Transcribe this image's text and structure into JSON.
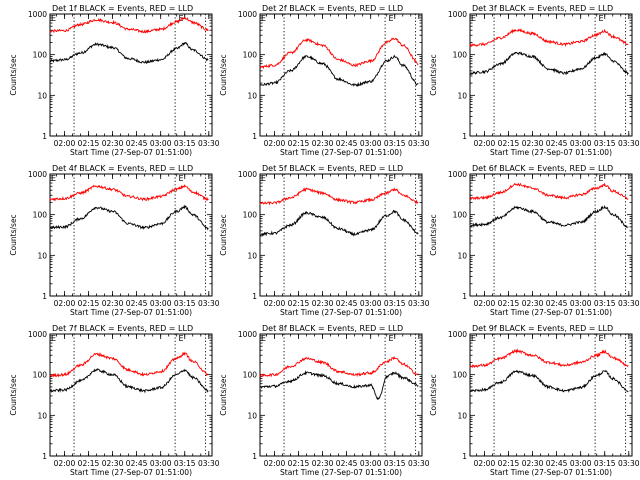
{
  "chart_data": [
    {
      "type": "line",
      "title": "Det 1f BLACK = Events, RED = LLD",
      "xlabel": "Start Time (27-Sep-07 01:51:00)",
      "ylabel": "Counts/sec",
      "yscale": "log",
      "ylim": [
        1,
        1000
      ],
      "x_ticks": [
        "02:00",
        "02:15",
        "02:30",
        "02:45",
        "03:00",
        "03:15",
        "03:30"
      ],
      "y_ticks": [
        "1",
        "10",
        "100",
        "1000"
      ],
      "xlim": [
        "01:51",
        "03:32"
      ],
      "vlines": [
        "02:06",
        "03:09",
        "03:28"
      ],
      "markers": [
        {
          "x": "03:13",
          "label": "E"
        }
      ],
      "series": [
        {
          "color": "#000000",
          "x": [
            "01:51",
            "02:00",
            "02:10",
            "02:20",
            "02:30",
            "02:40",
            "02:50",
            "03:00",
            "03:10",
            "03:15",
            "03:20",
            "03:30"
          ],
          "values": [
            70,
            75,
            110,
            180,
            150,
            80,
            65,
            75,
            140,
            190,
            130,
            75
          ]
        },
        {
          "color": "#ff0000",
          "x": [
            "01:51",
            "02:00",
            "02:10",
            "02:20",
            "02:30",
            "02:40",
            "02:50",
            "03:00",
            "03:10",
            "03:15",
            "03:20",
            "03:30"
          ],
          "values": [
            380,
            390,
            550,
            720,
            620,
            420,
            370,
            420,
            640,
            800,
            620,
            400
          ]
        }
      ]
    },
    {
      "type": "line",
      "title": "Det 2f BLACK = Events, RED = LLD",
      "xlabel": "Start Time (27-Sep-07 01:51:00)",
      "ylabel": "Counts/sec",
      "yscale": "log",
      "ylim": [
        1,
        1000
      ],
      "x_ticks": [
        "02:00",
        "02:15",
        "02:30",
        "02:45",
        "03:00",
        "03:15",
        "03:30"
      ],
      "y_ticks": [
        "1",
        "10",
        "100",
        "1000"
      ],
      "xlim": [
        "01:51",
        "03:32"
      ],
      "vlines": [
        "02:06",
        "03:09",
        "03:28"
      ],
      "markers": [
        {
          "x": "03:13",
          "label": "E"
        }
      ],
      "series": [
        {
          "color": "#000000",
          "x": [
            "01:51",
            "02:00",
            "02:10",
            "02:20",
            "02:30",
            "02:40",
            "02:50",
            "03:00",
            "03:10",
            "03:15",
            "03:20",
            "03:30"
          ],
          "values": [
            18,
            20,
            40,
            90,
            60,
            25,
            18,
            22,
            70,
            90,
            55,
            18
          ]
        },
        {
          "color": "#ff0000",
          "x": [
            "01:51",
            "02:00",
            "02:10",
            "02:20",
            "02:30",
            "02:40",
            "02:50",
            "03:00",
            "03:10",
            "03:15",
            "03:20",
            "03:30"
          ],
          "values": [
            50,
            55,
            110,
            230,
            170,
            75,
            55,
            70,
            200,
            250,
            170,
            60
          ]
        }
      ]
    },
    {
      "type": "line",
      "title": "Det 3f BLACK = Events, RED = LLD",
      "xlabel": "Start Time (27-Sep-07 01:51:00)",
      "ylabel": "Counts/sec",
      "yscale": "log",
      "ylim": [
        1,
        1000
      ],
      "x_ticks": [
        "02:00",
        "02:15",
        "02:30",
        "02:45",
        "03:00",
        "03:15",
        "03:30"
      ],
      "y_ticks": [
        "1",
        "10",
        "100",
        "1000"
      ],
      "xlim": [
        "01:51",
        "03:32"
      ],
      "vlines": [
        "02:06",
        "03:09",
        "03:28"
      ],
      "markers": [
        {
          "x": "03:13",
          "label": "E"
        }
      ],
      "series": [
        {
          "color": "#000000",
          "x": [
            "01:51",
            "02:00",
            "02:10",
            "02:20",
            "02:30",
            "02:40",
            "02:50",
            "03:00",
            "03:10",
            "03:15",
            "03:20",
            "03:30"
          ],
          "values": [
            35,
            38,
            60,
            110,
            90,
            45,
            35,
            45,
            85,
            105,
            70,
            35
          ]
        },
        {
          "color": "#ff0000",
          "x": [
            "01:51",
            "02:00",
            "02:10",
            "02:20",
            "02:30",
            "02:40",
            "02:50",
            "03:00",
            "03:10",
            "03:15",
            "03:20",
            "03:30"
          ],
          "values": [
            170,
            180,
            260,
            400,
            330,
            210,
            180,
            210,
            310,
            380,
            280,
            180
          ]
        }
      ]
    },
    {
      "type": "line",
      "title": "Det 4f BLACK = Events, RED = LLD",
      "xlabel": "Start Time (27-Sep-07 01:51:00)",
      "ylabel": "Counts/sec",
      "yscale": "log",
      "ylim": [
        1,
        1000
      ],
      "x_ticks": [
        "02:00",
        "02:15",
        "02:30",
        "02:45",
        "03:00",
        "03:15",
        "03:30"
      ],
      "y_ticks": [
        "1",
        "10",
        "100",
        "1000"
      ],
      "xlim": [
        "01:51",
        "03:32"
      ],
      "vlines": [
        "02:06",
        "03:09",
        "03:28"
      ],
      "markers": [
        {
          "x": "03:13",
          "label": "E"
        }
      ],
      "series": [
        {
          "color": "#000000",
          "x": [
            "01:51",
            "02:00",
            "02:10",
            "02:20",
            "02:30",
            "02:40",
            "02:50",
            "03:00",
            "03:10",
            "03:15",
            "03:20",
            "03:30"
          ],
          "values": [
            48,
            50,
            80,
            150,
            120,
            60,
            48,
            60,
            120,
            155,
            100,
            45
          ]
        },
        {
          "color": "#ff0000",
          "x": [
            "01:51",
            "02:00",
            "02:10",
            "02:20",
            "02:30",
            "02:40",
            "02:50",
            "03:00",
            "03:10",
            "03:15",
            "03:20",
            "03:30"
          ],
          "values": [
            240,
            250,
            340,
            500,
            420,
            280,
            240,
            280,
            420,
            500,
            360,
            240
          ]
        }
      ]
    },
    {
      "type": "line",
      "title": "Det 5f BLACK = Events, RED = LLD",
      "xlabel": "Start Time (27-Sep-07 01:51:00)",
      "ylabel": "Counts/sec",
      "yscale": "log",
      "ylim": [
        1,
        1000
      ],
      "x_ticks": [
        "02:00",
        "02:15",
        "02:30",
        "02:45",
        "03:00",
        "03:15",
        "03:30"
      ],
      "y_ticks": [
        "1",
        "10",
        "100",
        "1000"
      ],
      "xlim": [
        "01:51",
        "03:32"
      ],
      "vlines": [
        "02:06",
        "03:09",
        "03:28"
      ],
      "markers": [
        {
          "x": "03:13",
          "label": "E"
        }
      ],
      "series": [
        {
          "color": "#000000",
          "x": [
            "01:51",
            "02:00",
            "02:10",
            "02:20",
            "02:30",
            "02:40",
            "02:50",
            "03:00",
            "03:10",
            "03:15",
            "03:20",
            "03:30"
          ],
          "values": [
            33,
            35,
            55,
            110,
            85,
            45,
            33,
            42,
            95,
            120,
            75,
            35
          ]
        },
        {
          "color": "#ff0000",
          "x": [
            "01:51",
            "02:00",
            "02:10",
            "02:20",
            "02:30",
            "02:40",
            "02:50",
            "03:00",
            "03:10",
            "03:15",
            "03:20",
            "03:30"
          ],
          "values": [
            190,
            195,
            260,
            420,
            340,
            230,
            200,
            230,
            340,
            420,
            300,
            200
          ]
        }
      ]
    },
    {
      "type": "line",
      "title": "Det 6f BLACK = Events, RED = LLD",
      "xlabel": "Start Time (27-Sep-07 01:51:00)",
      "ylabel": "Counts/sec",
      "yscale": "log",
      "ylim": [
        1,
        1000
      ],
      "x_ticks": [
        "02:00",
        "02:15",
        "02:30",
        "02:45",
        "03:00",
        "03:15",
        "03:30"
      ],
      "y_ticks": [
        "1",
        "10",
        "100",
        "1000"
      ],
      "xlim": [
        "01:51",
        "03:32"
      ],
      "vlines": [
        "02:06",
        "03:09",
        "03:28"
      ],
      "markers": [
        {
          "x": "03:13",
          "label": "E"
        }
      ],
      "series": [
        {
          "color": "#000000",
          "x": [
            "01:51",
            "02:00",
            "02:10",
            "02:20",
            "02:30",
            "02:40",
            "02:50",
            "03:00",
            "03:10",
            "03:15",
            "03:20",
            "03:30"
          ],
          "values": [
            55,
            58,
            85,
            150,
            120,
            65,
            55,
            65,
            120,
            155,
            100,
            50
          ]
        },
        {
          "color": "#ff0000",
          "x": [
            "01:51",
            "02:00",
            "02:10",
            "02:20",
            "02:30",
            "02:40",
            "02:50",
            "03:00",
            "03:10",
            "03:15",
            "03:20",
            "03:30"
          ],
          "values": [
            250,
            260,
            350,
            560,
            450,
            300,
            260,
            310,
            450,
            540,
            380,
            250
          ]
        }
      ]
    },
    {
      "type": "line",
      "title": "Det 7f BLACK = Events, RED = LLD",
      "xlabel": "Start Time (27-Sep-07 01:51:00)",
      "ylabel": "Counts/sec",
      "yscale": "log",
      "ylim": [
        1,
        1000
      ],
      "x_ticks": [
        "02:00",
        "02:15",
        "02:30",
        "02:45",
        "03:00",
        "03:15",
        "03:30"
      ],
      "y_ticks": [
        "1",
        "10",
        "100",
        "1000"
      ],
      "xlim": [
        "01:51",
        "03:32"
      ],
      "vlines": [
        "02:06",
        "03:09",
        "03:28"
      ],
      "markers": [
        {
          "x": "03:13",
          "label": "E"
        }
      ],
      "series": [
        {
          "color": "#000000",
          "x": [
            "01:51",
            "02:00",
            "02:10",
            "02:20",
            "02:30",
            "02:40",
            "02:50",
            "03:00",
            "03:10",
            "03:15",
            "03:20",
            "03:30"
          ],
          "values": [
            40,
            42,
            70,
            130,
            100,
            50,
            40,
            48,
            100,
            130,
            85,
            40
          ]
        },
        {
          "color": "#ff0000",
          "x": [
            "01:51",
            "02:00",
            "02:10",
            "02:20",
            "02:30",
            "02:40",
            "02:50",
            "03:00",
            "03:10",
            "03:15",
            "03:20",
            "03:30"
          ],
          "values": [
            95,
            100,
            170,
            320,
            250,
            130,
            100,
            120,
            250,
            330,
            210,
            100
          ]
        }
      ]
    },
    {
      "type": "line",
      "title": "Det 8f BLACK = Events, RED = LLD",
      "xlabel": "Start Time (27-Sep-07 01:51:00)",
      "ylabel": "Counts/sec",
      "yscale": "log",
      "ylim": [
        1,
        1000
      ],
      "x_ticks": [
        "02:00",
        "02:15",
        "02:30",
        "02:45",
        "03:00",
        "03:15",
        "03:30"
      ],
      "y_ticks": [
        "1",
        "10",
        "100",
        "1000"
      ],
      "xlim": [
        "01:51",
        "03:32"
      ],
      "vlines": [
        "02:06",
        "03:09",
        "03:28"
      ],
      "markers": [
        {
          "x": "03:13",
          "label": "E"
        }
      ],
      "series": [
        {
          "color": "#000000",
          "x": [
            "01:51",
            "02:00",
            "02:10",
            "02:20",
            "02:30",
            "02:40",
            "02:50",
            "03:00",
            "03:05",
            "03:10",
            "03:15",
            "03:20",
            "03:30"
          ],
          "values": [
            50,
            52,
            70,
            110,
            95,
            60,
            50,
            55,
            25,
            90,
            110,
            85,
            55
          ]
        },
        {
          "color": "#ff0000",
          "x": [
            "01:51",
            "02:00",
            "02:10",
            "02:20",
            "02:30",
            "02:40",
            "02:50",
            "03:00",
            "03:10",
            "03:15",
            "03:20",
            "03:30"
          ],
          "values": [
            95,
            100,
            160,
            250,
            200,
            120,
            100,
            110,
            210,
            260,
            180,
            100
          ]
        }
      ]
    },
    {
      "type": "line",
      "title": "Det 9f BLACK = Events, RED = LLD",
      "xlabel": "Start Time (27-Sep-07 01:51:00)",
      "ylabel": "Counts/sec",
      "yscale": "log",
      "ylim": [
        1,
        1000
      ],
      "x_ticks": [
        "02:00",
        "02:15",
        "02:30",
        "02:45",
        "03:00",
        "03:15",
        "03:30"
      ],
      "y_ticks": [
        "1",
        "10",
        "100",
        "1000"
      ],
      "xlim": [
        "01:51",
        "03:32"
      ],
      "vlines": [
        "02:06",
        "03:09",
        "03:28"
      ],
      "markers": [
        {
          "x": "03:13",
          "label": "E"
        }
      ],
      "series": [
        {
          "color": "#000000",
          "x": [
            "01:51",
            "02:00",
            "02:10",
            "02:20",
            "02:30",
            "02:40",
            "02:50",
            "03:00",
            "03:10",
            "03:15",
            "03:20",
            "03:30"
          ],
          "values": [
            40,
            42,
            65,
            120,
            95,
            50,
            40,
            48,
            95,
            120,
            80,
            40
          ]
        },
        {
          "color": "#ff0000",
          "x": [
            "01:51",
            "02:00",
            "02:10",
            "02:20",
            "02:30",
            "02:40",
            "02:50",
            "03:00",
            "03:10",
            "03:15",
            "03:20",
            "03:30"
          ],
          "values": [
            160,
            170,
            250,
            380,
            300,
            200,
            170,
            200,
            300,
            370,
            260,
            170
          ]
        }
      ]
    }
  ]
}
